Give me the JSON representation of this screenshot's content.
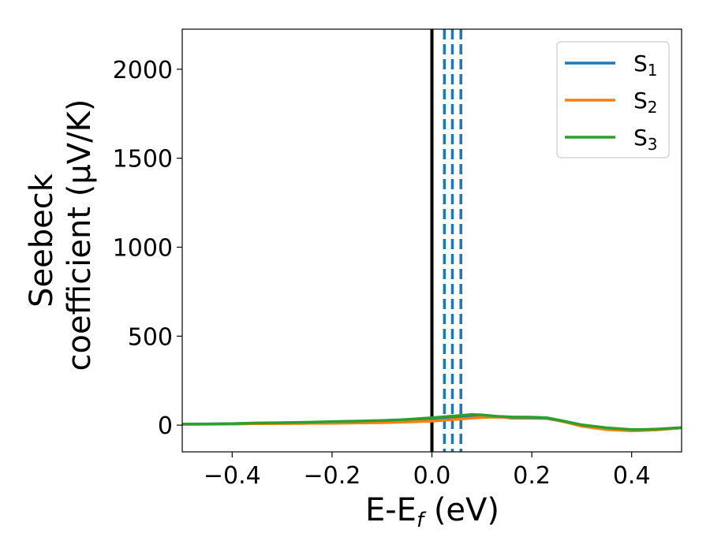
{
  "chart_data": {
    "type": "line",
    "xlabel": "E-E",
    "xlabel_subscript": "f",
    "xlabel_unit": "(eV)",
    "ylabel_line1": "Seebeck",
    "ylabel_line2": "coefficient  (μV/K)",
    "xlim": [
      -0.5,
      0.5
    ],
    "ylim": [
      -150,
      2225
    ],
    "xticks": [
      -0.4,
      -0.2,
      0.0,
      0.2,
      0.4
    ],
    "xtick_labels": [
      "−0.4",
      "−0.2",
      "0.0",
      "0.2",
      "0.4"
    ],
    "yticks": [
      0,
      500,
      1000,
      1500,
      2000
    ],
    "ytick_labels": [
      "0",
      "500",
      "1000",
      "1500",
      "2000"
    ],
    "legend_position": "top-right",
    "grid": false,
    "series": [
      {
        "name": "S",
        "subscript": "1",
        "color": "#1f77b4",
        "x": [
          -0.5,
          -0.45,
          -0.4,
          -0.35,
          -0.3,
          -0.25,
          -0.2,
          -0.15,
          -0.1,
          -0.05,
          0.0,
          0.05,
          0.08,
          0.1,
          0.13,
          0.16,
          0.2,
          0.23,
          0.26,
          0.3,
          0.35,
          0.4,
          0.42,
          0.45,
          0.5
        ],
        "y": [
          5,
          6,
          8,
          11,
          13,
          15,
          17,
          19,
          22,
          28,
          35,
          43,
          50,
          53,
          48,
          40,
          40,
          38,
          22,
          -2,
          -20,
          -30,
          -30,
          -26,
          -15
        ]
      },
      {
        "name": "S",
        "subscript": "2",
        "color": "#ff7f0e",
        "x": [
          -0.5,
          -0.45,
          -0.4,
          -0.35,
          -0.3,
          -0.25,
          -0.2,
          -0.15,
          -0.1,
          -0.05,
          0.0,
          0.05,
          0.08,
          0.1,
          0.13,
          0.16,
          0.2,
          0.23,
          0.26,
          0.3,
          0.35,
          0.4,
          0.42,
          0.45,
          0.5
        ],
        "y": [
          4,
          5,
          6,
          8,
          9,
          10,
          11,
          12,
          14,
          18,
          23,
          33,
          40,
          43,
          45,
          44,
          44,
          40,
          22,
          -6,
          -25,
          -32,
          -30,
          -26,
          -15
        ]
      },
      {
        "name": "S",
        "subscript": "3",
        "color": "#2ca02c",
        "x": [
          -0.5,
          -0.45,
          -0.4,
          -0.35,
          -0.3,
          -0.25,
          -0.2,
          -0.15,
          -0.1,
          -0.05,
          0.0,
          0.05,
          0.08,
          0.1,
          0.13,
          0.16,
          0.2,
          0.23,
          0.26,
          0.3,
          0.35,
          0.4,
          0.42,
          0.45,
          0.5
        ],
        "y": [
          6,
          7,
          8,
          12,
          14,
          16,
          20,
          23,
          26,
          32,
          42,
          53,
          60,
          58,
          50,
          46,
          45,
          42,
          25,
          2,
          -15,
          -25,
          -25,
          -22,
          -14
        ]
      }
    ],
    "vlines": [
      {
        "x": 0.0,
        "color": "#000000",
        "style": "solid"
      },
      {
        "x": 0.025,
        "color": "#1f77b4",
        "style": "dashed"
      },
      {
        "x": 0.041,
        "color": "#1f77b4",
        "style": "dashed"
      },
      {
        "x": 0.058,
        "color": "#1f77b4",
        "style": "dashed"
      }
    ]
  }
}
